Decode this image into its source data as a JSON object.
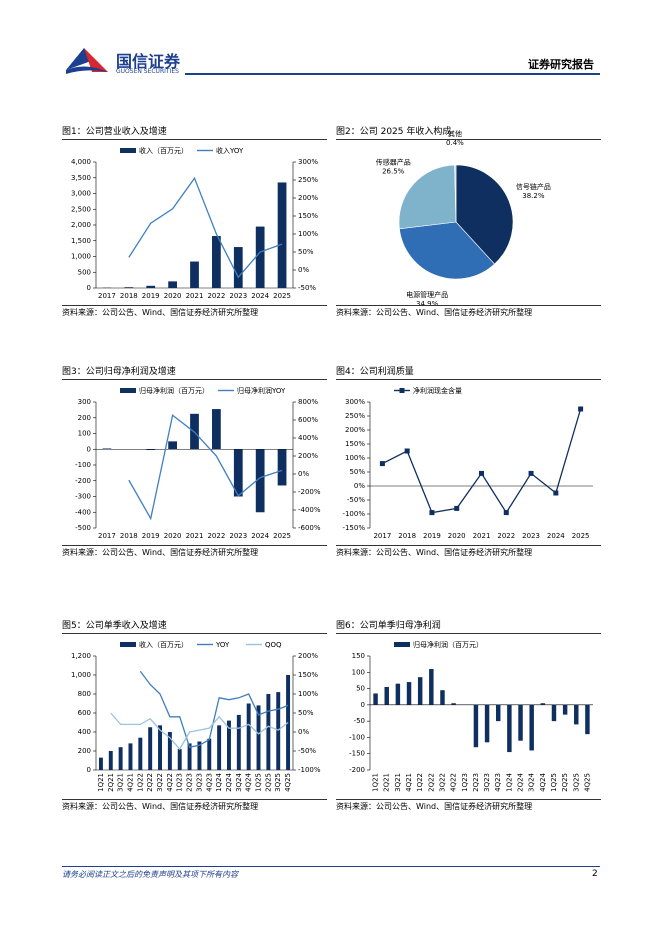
{
  "header": {
    "brand": "国信证券",
    "brand_en": "GUOSEN SECURITIES",
    "report_type": "证券研究报告"
  },
  "chart_data": [
    {
      "type": "bar",
      "title": "图1：公司营业收入及增速",
      "source": "资料来源：公司公告、Wind、国信证券经济研究所整理",
      "categories": [
        "2017",
        "2018",
        "2019",
        "2020",
        "2021",
        "2022",
        "2023",
        "2024",
        "2025"
      ],
      "series": [
        {
          "name": "收入（百万元）",
          "type": "bar",
          "color": "#0e2f5f",
          "values": [
            10,
            25,
            70,
            210,
            840,
            1650,
            1300,
            1950,
            3350
          ]
        },
        {
          "name": "收入YOY",
          "type": "line",
          "axis": "y2",
          "color": "#3f7fbf",
          "values": [
            null,
            35,
            130,
            170,
            255,
            100,
            -20,
            50,
            72
          ]
        }
      ],
      "ylim": [
        0,
        4000
      ],
      "yticks": [
        0,
        500,
        {
          "value": 1000,
          "label": "1,000"
        },
        {
          "value": 1500,
          "label": "1,500"
        },
        {
          "value": 2000,
          "label": "2,000"
        },
        {
          "value": 2500,
          "label": "2,500"
        },
        {
          "value": 3000,
          "label": "3,000"
        },
        {
          "value": 3500,
          "label": "3,500"
        },
        {
          "value": 4000,
          "label": "4,000"
        }
      ],
      "y2lim": [
        -50,
        300
      ],
      "y2ticks": [
        {
          "value": -50,
          "label": "-50%"
        },
        {
          "value": 0,
          "label": "0%"
        },
        {
          "value": 50,
          "label": "50%"
        },
        {
          "value": 100,
          "label": "100%"
        },
        {
          "value": 150,
          "label": "150%"
        },
        {
          "value": 200,
          "label": "200%"
        },
        {
          "value": 250,
          "label": "250%"
        },
        {
          "value": 300,
          "label": "300%"
        }
      ],
      "grid": false
    },
    {
      "type": "pie",
      "title": "图2：公司 2025 年收入构成",
      "source": "资料来源：公司公告、Wind、国信证券经济研究所整理",
      "categories": [
        "信号链产品",
        "电源管理产品",
        "传感器产品",
        "其他"
      ],
      "values": [
        38.2,
        34.9,
        26.5,
        0.4
      ],
      "value_labels": [
        "38.2%",
        "34.9%",
        "26.5%",
        "0.4%"
      ],
      "colors": [
        "#0e2f5f",
        "#2f6db5",
        "#7fb3cc",
        "#c9dbe8"
      ]
    },
    {
      "type": "bar",
      "title": "图3：公司归母净利润及增速",
      "source": "资料来源：公司公告、Wind、国信证券经济研究所整理",
      "categories": [
        "2017",
        "2018",
        "2019",
        "2020",
        "2021",
        "2022",
        "2023",
        "2024",
        "2025"
      ],
      "series": [
        {
          "name": "归母净利润（百万元）",
          "type": "bar",
          "color": "#0e2f5f",
          "values": [
            5,
            0,
            -5,
            50,
            225,
            255,
            -300,
            -400,
            -230
          ]
        },
        {
          "name": "归母净利润YOY",
          "type": "line",
          "axis": "y2",
          "color": "#3f7fbf",
          "values": [
            null,
            -68,
            -495,
            653,
            464,
            200,
            -241,
            -40,
            40
          ]
        }
      ],
      "ylim": [
        -500,
        300
      ],
      "yticks": [
        -500,
        -400,
        -300,
        -200,
        -100,
        0,
        100,
        200,
        300
      ],
      "y2lim": [
        -600,
        800
      ],
      "y2ticks": [
        {
          "value": -600,
          "label": "-600%"
        },
        {
          "value": -400,
          "label": "-400%"
        },
        {
          "value": -200,
          "label": "-200%"
        },
        {
          "value": 0,
          "label": "0%"
        },
        {
          "value": 200,
          "label": "200%"
        },
        {
          "value": 400,
          "label": "400%"
        },
        {
          "value": 600,
          "label": "600%"
        },
        {
          "value": 800,
          "label": "800%"
        }
      ],
      "grid": false
    },
    {
      "type": "line",
      "title": "图4：公司利润质量",
      "source": "资料来源：公司公告、Wind、国信证券经济研究所整理",
      "categories": [
        "2017",
        "2018",
        "2019",
        "2020",
        "2021",
        "2022",
        "2023",
        "2024",
        "2025"
      ],
      "series": [
        {
          "name": "净利润现金含量",
          "type": "line",
          "color": "#0e2f5f",
          "marker": "square",
          "values": [
            80,
            125,
            -95,
            -80,
            45,
            -95,
            45,
            -25,
            275
          ]
        }
      ],
      "ylim": [
        -150,
        300
      ],
      "yticks": [
        {
          "value": -150,
          "label": "-150%"
        },
        {
          "value": -100,
          "label": "-100%"
        },
        {
          "value": -50,
          "label": "-50%"
        },
        {
          "value": 0,
          "label": "0%"
        },
        {
          "value": 50,
          "label": "50%"
        },
        {
          "value": 100,
          "label": "100%"
        },
        {
          "value": 150,
          "label": "150%"
        },
        {
          "value": 200,
          "label": "200%"
        },
        {
          "value": 250,
          "label": "250%"
        },
        {
          "value": 300,
          "label": "300%"
        }
      ],
      "grid": false
    },
    {
      "type": "bar",
      "title": "图5：公司单季收入及增速",
      "source": "资料来源：公司公告、Wind、国信证券经济研究所整理",
      "categories": [
        "1Q21",
        "2Q21",
        "3Q21",
        "4Q21",
        "1Q22",
        "2Q22",
        "3Q22",
        "4Q22",
        "1Q23",
        "2Q23",
        "3Q23",
        "4Q23",
        "1Q24",
        "2Q24",
        "3Q24",
        "4Q24",
        "1Q25",
        "2Q25",
        "3Q25",
        "4Q25"
      ],
      "series": [
        {
          "name": "收入（百万元）",
          "type": "bar",
          "color": "#0e2f5f",
          "values": [
            130,
            200,
            240,
            280,
            340,
            450,
            470,
            400,
            220,
            280,
            300,
            330,
            470,
            520,
            580,
            700,
            680,
            800,
            820,
            1000
          ]
        },
        {
          "name": "YOY",
          "type": "line",
          "axis": "y2",
          "color": "#3f7fbf",
          "values": [
            null,
            null,
            null,
            null,
            160,
            125,
            100,
            40,
            40,
            -40,
            -35,
            -20,
            90,
            85,
            90,
            100,
            45,
            55,
            60,
            70
          ]
        },
        {
          "name": "QOQ",
          "type": "line",
          "axis": "y2",
          "color": "#9cc3dd",
          "values": [
            null,
            50,
            20,
            20,
            20,
            35,
            5,
            -15,
            -45,
            0,
            5,
            10,
            40,
            10,
            10,
            20,
            -5,
            15,
            5,
            25
          ]
        }
      ],
      "ylim": [
        0,
        1200
      ],
      "yticks": [
        0,
        200,
        400,
        600,
        800,
        {
          "value": 1000,
          "label": "1,000"
        },
        {
          "value": 1200,
          "label": "1,200"
        }
      ],
      "y2lim": [
        -100,
        200
      ],
      "y2ticks": [
        {
          "value": -100,
          "label": "-100%"
        },
        {
          "value": -50,
          "label": "-50%"
        },
        {
          "value": 0,
          "label": "0%"
        },
        {
          "value": 50,
          "label": "50%"
        },
        {
          "value": 100,
          "label": "100%"
        },
        {
          "value": 150,
          "label": "150%"
        },
        {
          "value": 200,
          "label": "200%"
        }
      ],
      "grid": false
    },
    {
      "type": "bar",
      "title": "图6：公司单季归母净利润",
      "source": "资料来源：公司公告、Wind、国信证券经济研究所整理",
      "categories": [
        "1Q21",
        "2Q21",
        "3Q21",
        "4Q21",
        "1Q22",
        "2Q22",
        "3Q22",
        "4Q22",
        "1Q23",
        "2Q23",
        "3Q23",
        "4Q23",
        "1Q24",
        "2Q24",
        "3Q24",
        "4Q24",
        "1Q25",
        "2Q25",
        "3Q25",
        "4Q25"
      ],
      "series": [
        {
          "name": "归母净利润（百万元）",
          "type": "bar",
          "color": "#0e2f5f",
          "values": [
            35,
            55,
            65,
            70,
            85,
            110,
            45,
            5,
            0,
            -130,
            -115,
            -50,
            -145,
            -110,
            -140,
            5,
            -50,
            -30,
            -60,
            -90
          ]
        }
      ],
      "ylim": [
        -200,
        150
      ],
      "yticks": [
        -200,
        -150,
        -100,
        -50,
        0,
        50,
        100,
        150
      ],
      "grid": false
    }
  ],
  "footer": {
    "disclaimer": "请务必阅读正文之后的免责声明及其项下所有内容",
    "page": "2"
  }
}
